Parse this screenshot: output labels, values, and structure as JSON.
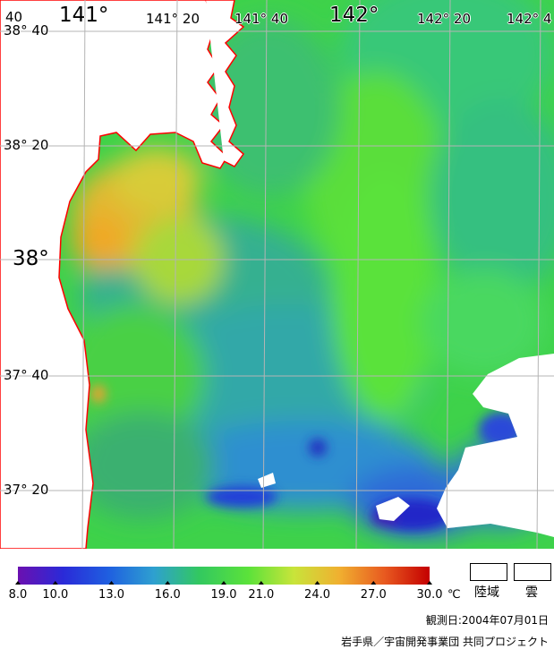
{
  "map": {
    "longitude_labels": [
      {
        "id": "lon-141",
        "text": "141°"
      },
      {
        "id": "lon-141-20",
        "text": "141° 20"
      },
      {
        "id": "lon-141-40",
        "text": "141° 40"
      },
      {
        "id": "lon-142",
        "text": "142°"
      },
      {
        "id": "lon-142-20",
        "text": "142° 20"
      },
      {
        "id": "lon-142-40",
        "text": "142° 4"
      },
      {
        "id": "lon-40-edge",
        "text": "40"
      }
    ],
    "latitude_labels": [
      {
        "id": "lat-38-40",
        "text": "38° 40"
      },
      {
        "id": "lat-38-20",
        "text": "38° 20"
      },
      {
        "id": "lat-38",
        "text": "38°"
      },
      {
        "id": "lat-37-40",
        "text": "37° 40"
      },
      {
        "id": "lat-37-20",
        "text": "37° 20"
      }
    ],
    "colors": {
      "land": "#ffffff",
      "coast": "#ff0000",
      "grid": "#b4b4b4",
      "ocean_base": "#3ed24a"
    }
  },
  "legend": {
    "ticks": [
      "8.0",
      "10.0",
      "13.0",
      "16.0",
      "19.0",
      "21.0",
      "24.0",
      "27.0",
      "30.0"
    ],
    "unit": "℃",
    "land_label": "陸域",
    "cloud_label": "雲",
    "observation_date": "観測日:2004年07月01日",
    "credit": "岩手県／宇宙開発事業団 共同プロジェクト",
    "colorscale": [
      "#6b10b0",
      "#2a2ad8",
      "#1f5fe0",
      "#2ea0d0",
      "#32c860",
      "#5be23a",
      "#c8e43a",
      "#f0b030",
      "#e85a20",
      "#c40000"
    ]
  }
}
